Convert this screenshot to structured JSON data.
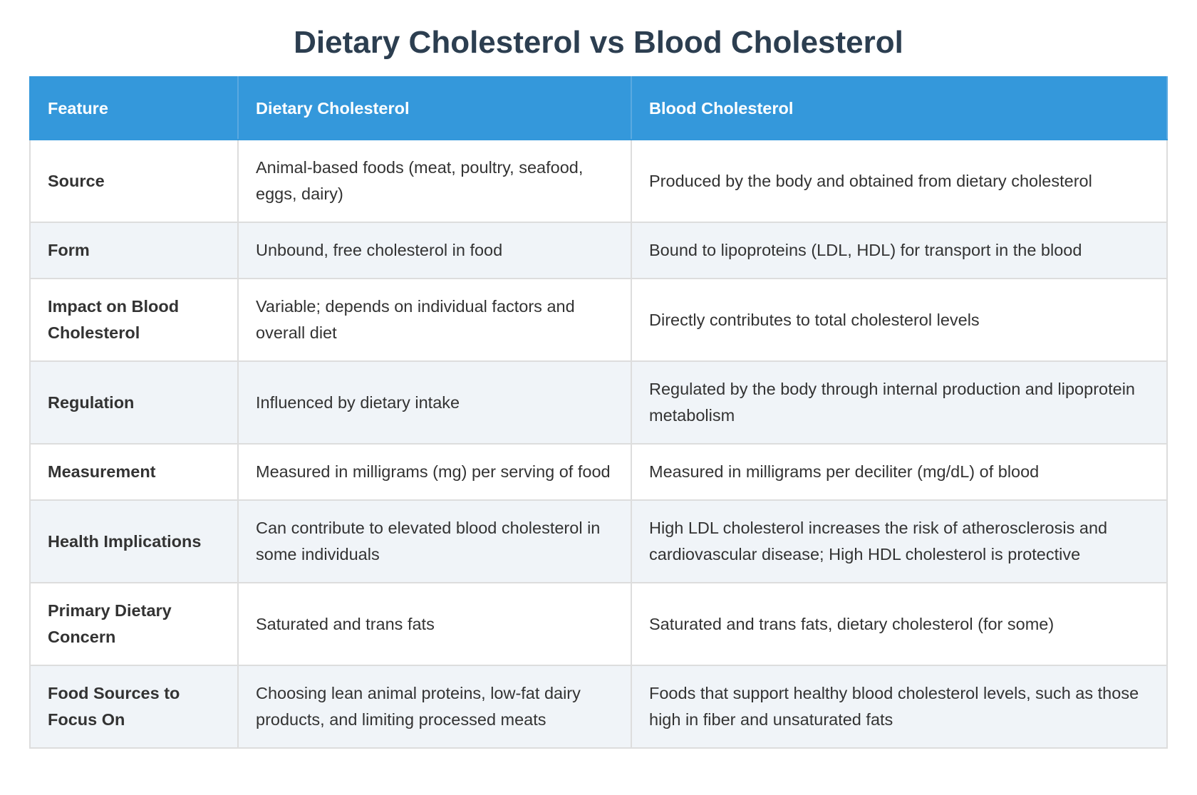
{
  "header": {
    "title": "Dietary Cholesterol vs Blood Cholesterol"
  },
  "table": {
    "columns": [
      "Feature",
      "Dietary Cholesterol",
      "Blood Cholesterol"
    ],
    "rows": [
      [
        "Source",
        "Animal-based foods (meat, poultry, seafood, eggs, dairy)",
        "Produced by the body and obtained from dietary cholesterol"
      ],
      [
        "Form",
        "Unbound, free cholesterol in food",
        "Bound to lipoproteins (LDL, HDL) for transport in the blood"
      ],
      [
        "Impact on Blood Cholesterol",
        "Variable; depends on individual factors and overall diet",
        "Directly contributes to total cholesterol levels"
      ],
      [
        "Regulation",
        "Influenced by dietary intake",
        "Regulated by the body through internal production and lipoprotein metabolism"
      ],
      [
        "Measurement",
        "Measured in milligrams (mg) per serving of food",
        "Measured in milligrams per deciliter (mg/dL) of blood"
      ],
      [
        "Health Implications",
        "Can contribute to elevated blood cholesterol in some individuals",
        "High LDL cholesterol increases the risk of atherosclerosis and cardiovascular disease; High HDL cholesterol is protective"
      ],
      [
        "Primary Dietary Concern",
        "Saturated and trans fats",
        "Saturated and trans fats, dietary cholesterol (for some)"
      ],
      [
        "Food Sources to Focus On",
        "Choosing lean animal proteins, low-fat dairy products, and limiting processed meats",
        "Foods that support healthy blood cholesterol levels, such as those high in fiber and unsaturated fats"
      ]
    ]
  }
}
